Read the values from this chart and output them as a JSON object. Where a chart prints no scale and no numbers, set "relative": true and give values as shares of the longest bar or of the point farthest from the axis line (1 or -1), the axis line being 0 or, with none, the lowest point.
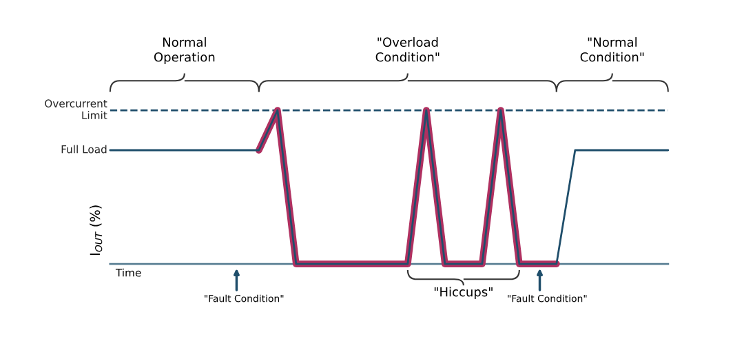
{
  "chart_data": {
    "type": "line",
    "relative": true,
    "xlabel": "Time",
    "ylabel": "I$_{OUT}$ (%)",
    "categories": [
      null,
      null,
      null,
      null,
      null,
      null,
      null,
      null,
      null,
      null,
      null,
      null,
      null,
      null,
      null,
      null,
      null,
      null,
      null,
      null,
      null,
      null,
      null,
      null,
      null,
      null,
      null,
      null,
      null,
      null,
      null
    ],
    "grid": false,
    "marker": "none",
    "line_style": "solid",
    "series": [
      {
        "color": "#b03060",
        "values": [
          null,
          null,
          null,
          null,
          null,
          null,
          null,
          null,
          0.74,
          1,
          0,
          0,
          0,
          0,
          0,
          0,
          0,
          1,
          0,
          0,
          0,
          1,
          0,
          0,
          0,
          null,
          null,
          null,
          null,
          null,
          null
        ]
      },
      {
        "color": "#1f4e6b",
        "values": [
          0.74,
          0.74,
          0.74,
          0.74,
          0.74,
          0.74,
          0.74,
          0.74,
          0.74,
          1,
          0,
          0,
          0,
          0,
          0,
          0,
          0,
          1,
          0,
          0,
          0,
          1,
          0,
          0,
          0,
          0.74,
          0.74,
          0.74,
          0.74,
          0.74,
          0.74
        ]
      }
    ],
    "ref_lines": [
      {
        "axis": "y",
        "value": 1,
        "label": "Overcurrent\nLimit",
        "color": "#1f4e6b",
        "line_style": "dashed"
      }
    ],
    "annotations": [
      "Normal\nOperation",
      "\"Overload\nCondition\"",
      "\"Normal\nCondition\"",
      "\"Hiccups\"",
      "\"Fault Condition\"",
      "\"Fault Condition\"",
      "Full Load"
    ]
  }
}
